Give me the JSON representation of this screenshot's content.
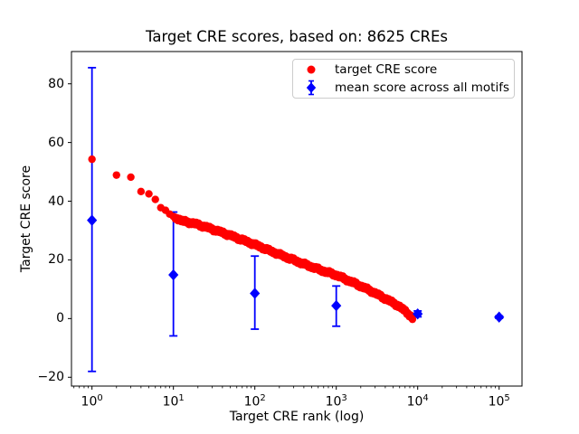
{
  "figure": {
    "title": "Target CRE scores, based on: 8625 CREs",
    "xlabel": "Target CRE rank (log)",
    "ylabel": "Target CRE score",
    "background": "#ffffff"
  },
  "legend": {
    "location": "upper right",
    "items": [
      {
        "label": "target CRE score",
        "marker": "circle",
        "color": "#ff0000"
      },
      {
        "label": "mean score across all motifs",
        "marker": "diamond-errorbar",
        "color": "#0000ff"
      }
    ]
  },
  "chart_data": {
    "type": "scatter",
    "title": "Target CRE scores, based on: 8625 CREs",
    "xlabel": "Target CRE rank (log)",
    "ylabel": "Target CRE score",
    "x_scale": "log",
    "grid": false,
    "xlim": [
      0.56,
      191000
    ],
    "ylim": [
      -23,
      91
    ],
    "x_tick_base": "10",
    "x_tick_exponents": [
      0,
      1,
      2,
      3,
      4,
      5
    ],
    "x_minor_subs": [
      2,
      3,
      4,
      5,
      6,
      7,
      8,
      9
    ],
    "y_ticks": [
      -20,
      0,
      20,
      40,
      60,
      80
    ],
    "y_tick_labels": [
      "−20",
      "0",
      "20",
      "40",
      "60",
      "80"
    ],
    "series": [
      {
        "name": "target CRE score",
        "kind": "ranked-scatter",
        "marker": "circle",
        "color": "#ff0000",
        "n_points": 8625,
        "anchor_points": [
          [
            1,
            54.3
          ],
          [
            2,
            48.9
          ],
          [
            3,
            48.2
          ],
          [
            4,
            43.3
          ],
          [
            5,
            42.5
          ],
          [
            6,
            40.6
          ],
          [
            7,
            37.8
          ],
          [
            8,
            36.9
          ],
          [
            9,
            35.6
          ],
          [
            10,
            34.8
          ],
          [
            13,
            33.2
          ],
          [
            18,
            32.4
          ],
          [
            25,
            31.2
          ],
          [
            40,
            29.3
          ],
          [
            63,
            27.3
          ],
          [
            100,
            25.2
          ],
          [
            160,
            22.9
          ],
          [
            250,
            20.8
          ],
          [
            400,
            18.6
          ],
          [
            630,
            16.6
          ],
          [
            1000,
            14.8
          ],
          [
            1600,
            12.3
          ],
          [
            2500,
            9.8
          ],
          [
            4000,
            6.8
          ],
          [
            5600,
            4.6
          ],
          [
            7000,
            2.6
          ],
          [
            8000,
            1.2
          ],
          [
            8625,
            0.0
          ]
        ]
      },
      {
        "name": "mean score across all motifs",
        "kind": "errorbar",
        "marker": "diamond",
        "color": "#0000ff",
        "points": [
          {
            "x": 1,
            "y": 33.5,
            "lo": -18.0,
            "hi": 85.5
          },
          {
            "x": 10,
            "y": 14.9,
            "lo": -5.9,
            "hi": 36.3
          },
          {
            "x": 100,
            "y": 8.6,
            "lo": -3.6,
            "hi": 21.3
          },
          {
            "x": 1000,
            "y": 4.4,
            "lo": -2.6,
            "hi": 11.1
          },
          {
            "x": 10000,
            "y": 1.6,
            "lo": 0.6,
            "hi": 2.6
          },
          {
            "x": 100000,
            "y": 0.5,
            "lo": 0.1,
            "hi": 0.9
          }
        ]
      }
    ]
  }
}
